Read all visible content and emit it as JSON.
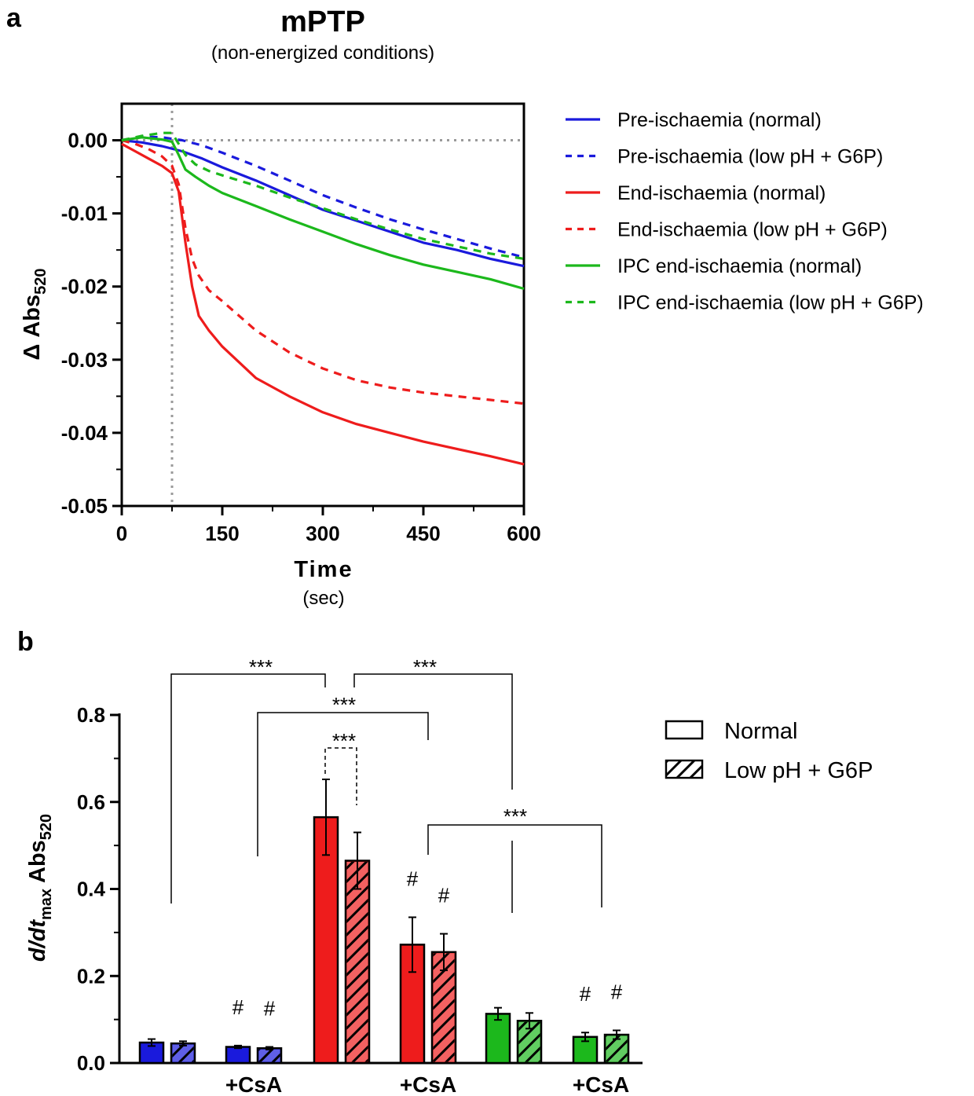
{
  "panel_a": {
    "letter": "a",
    "title": "mPTP",
    "subtitle": "(non-energized conditions)",
    "xlabel": "Time",
    "xunit": "(sec)",
    "ylabel_main": "Δ Abs",
    "ylabel_sub": "520"
  },
  "panel_b": {
    "letter": "b",
    "ylabel_prefix": "d/dt",
    "ylabel_sub1": "max",
    "ylabel_mid": " Abs",
    "ylabel_sub2": "520",
    "csa_label": "+CsA",
    "hash": "#",
    "sig": "***"
  },
  "chart_data": [
    {
      "type": "line",
      "xlim": [
        0,
        600
      ],
      "ylim": [
        -0.05,
        0.005
      ],
      "xticks": [
        "0",
        "150",
        "300",
        "450",
        "600"
      ],
      "yticks": [
        "0.00",
        "-0.01",
        "-0.02",
        "-0.03",
        "-0.04",
        "-0.05"
      ],
      "reference_lines": {
        "y": 0,
        "x": 75
      },
      "series": [
        {
          "name": "Pre-ischaemia (normal)",
          "color": "#1a1adc",
          "dash": false,
          "x": [
            0,
            30,
            60,
            90,
            120,
            150,
            200,
            250,
            300,
            350,
            400,
            450,
            500,
            550,
            600
          ],
          "y": [
            0.0,
            -0.0003,
            -0.0008,
            -0.0015,
            -0.0025,
            -0.0037,
            -0.0055,
            -0.0075,
            -0.0095,
            -0.011,
            -0.0125,
            -0.014,
            -0.015,
            -0.0162,
            -0.0172
          ]
        },
        {
          "name": "Pre-ischaemia (low pH + G6P)",
          "color": "#1a1adc",
          "dash": true,
          "x": [
            0,
            30,
            60,
            90,
            120,
            150,
            200,
            250,
            300,
            350,
            400,
            450,
            500,
            550,
            600
          ],
          "y": [
            0.0,
            0.0005,
            0.0004,
            0.0,
            -0.0007,
            -0.0017,
            -0.0035,
            -0.0055,
            -0.0075,
            -0.0092,
            -0.0108,
            -0.0122,
            -0.0135,
            -0.0148,
            -0.016
          ]
        },
        {
          "name": "End-ischaemia (normal)",
          "color": "#ee1c1c",
          "dash": false,
          "x": [
            0,
            20,
            40,
            60,
            75,
            85,
            95,
            105,
            115,
            130,
            150,
            200,
            250,
            300,
            350,
            400,
            450,
            500,
            550,
            600
          ],
          "y": [
            -0.0005,
            -0.0015,
            -0.0025,
            -0.0035,
            -0.0045,
            -0.007,
            -0.014,
            -0.02,
            -0.024,
            -0.026,
            -0.0282,
            -0.0325,
            -0.035,
            -0.0372,
            -0.0388,
            -0.04,
            -0.0412,
            -0.0422,
            -0.0432,
            -0.0443
          ]
        },
        {
          "name": "End-ischaemia (low pH + G6P)",
          "color": "#ee1c1c",
          "dash": true,
          "x": [
            0,
            20,
            40,
            60,
            75,
            85,
            95,
            105,
            115,
            130,
            150,
            200,
            250,
            300,
            350,
            400,
            450,
            500,
            550,
            600
          ],
          "y": [
            0.0,
            -0.0005,
            -0.0012,
            -0.0022,
            -0.0035,
            -0.006,
            -0.012,
            -0.0162,
            -0.0185,
            -0.0205,
            -0.022,
            -0.026,
            -0.029,
            -0.0312,
            -0.0328,
            -0.0338,
            -0.0345,
            -0.035,
            -0.0355,
            -0.036
          ]
        },
        {
          "name": "IPC end-ischaemia (normal)",
          "color": "#1cb81c",
          "dash": false,
          "x": [
            0,
            30,
            60,
            75,
            85,
            95,
            110,
            130,
            150,
            200,
            250,
            300,
            350,
            400,
            450,
            500,
            550,
            600
          ],
          "y": [
            0.0,
            0.0004,
            0.0001,
            -0.0002,
            -0.002,
            -0.004,
            -0.005,
            -0.0062,
            -0.0072,
            -0.009,
            -0.0108,
            -0.0125,
            -0.0142,
            -0.0157,
            -0.017,
            -0.018,
            -0.019,
            -0.0203
          ]
        },
        {
          "name": "IPC end-ischaemia (low pH + G6P)",
          "color": "#1cb81c",
          "dash": true,
          "x": [
            0,
            30,
            60,
            75,
            85,
            95,
            110,
            130,
            150,
            200,
            250,
            300,
            350,
            400,
            450,
            500,
            550,
            600
          ],
          "y": [
            0.0,
            0.0006,
            0.001,
            0.001,
            -0.0005,
            -0.002,
            -0.0033,
            -0.0042,
            -0.0048,
            -0.0062,
            -0.0078,
            -0.0093,
            -0.0108,
            -0.0122,
            -0.0135,
            -0.0145,
            -0.0155,
            -0.0162
          ]
        }
      ]
    },
    {
      "type": "bar",
      "ylim": [
        0,
        0.8
      ],
      "yticks": [
        "0.0",
        "0.2",
        "0.4",
        "0.6",
        "0.8"
      ],
      "legend": [
        {
          "name": "Normal",
          "hatched": false
        },
        {
          "name": "Low pH + G6P",
          "hatched": true
        }
      ],
      "bars": [
        {
          "group": 1,
          "series": "Normal",
          "color": "#1a1adc",
          "value": 0.047,
          "error": 0.008
        },
        {
          "group": 1,
          "series": "Low pH + G6P",
          "color": "#1a1adc",
          "value": 0.045,
          "error": 0.005
        },
        {
          "group": 2,
          "series": "Normal",
          "color": "#1a1adc",
          "value": 0.037,
          "error": 0.003,
          "mark": "#"
        },
        {
          "group": 2,
          "series": "Low pH + G6P",
          "color": "#1a1adc",
          "value": 0.034,
          "error": 0.003,
          "mark": "#"
        },
        {
          "group": 3,
          "series": "Normal",
          "color": "#ee1c1c",
          "value": 0.565,
          "error": 0.087
        },
        {
          "group": 3,
          "series": "Low pH + G6P",
          "color": "#ee1c1c",
          "value": 0.465,
          "error": 0.065
        },
        {
          "group": 4,
          "series": "Normal",
          "color": "#ee1c1c",
          "value": 0.272,
          "error": 0.063,
          "mark": "#"
        },
        {
          "group": 4,
          "series": "Low pH + G6P",
          "color": "#ee1c1c",
          "value": 0.255,
          "error": 0.042,
          "mark": "#"
        },
        {
          "group": 5,
          "series": "Normal",
          "color": "#1cb81c",
          "value": 0.113,
          "error": 0.014
        },
        {
          "group": 5,
          "series": "Low pH + G6P",
          "color": "#1cb81c",
          "value": 0.097,
          "error": 0.018
        },
        {
          "group": 6,
          "series": "Normal",
          "color": "#1cb81c",
          "value": 0.06,
          "error": 0.01,
          "mark": "#"
        },
        {
          "group": 6,
          "series": "Low pH + G6P",
          "color": "#1cb81c",
          "value": 0.065,
          "error": 0.01,
          "mark": "#"
        }
      ],
      "group_labels": [
        "",
        "+CsA",
        "",
        "+CsA",
        "",
        "+CsA"
      ],
      "significance": [
        "***",
        "***",
        "***",
        "***",
        "***"
      ]
    }
  ]
}
